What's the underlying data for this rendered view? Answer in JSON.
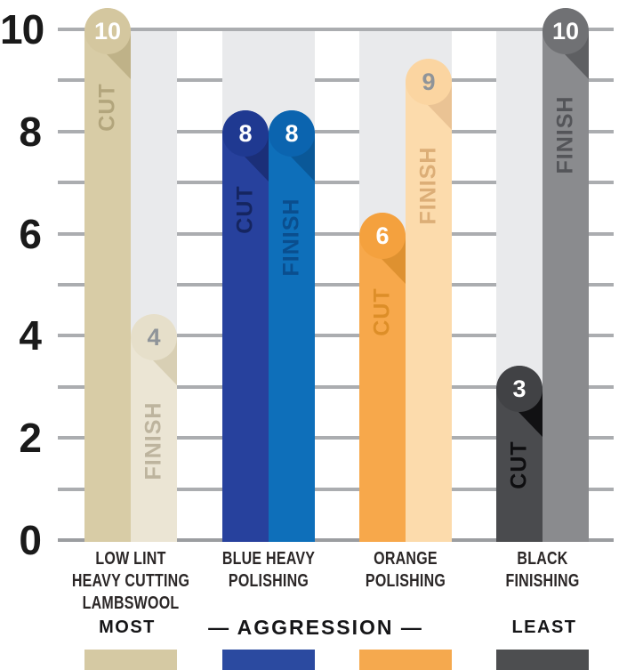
{
  "chart_data": {
    "type": "bar",
    "title": "",
    "categories": [
      "LOW LINT HEAVY CUTTING LAMBSWOOL",
      "BLUE HEAVY POLISHING",
      "ORANGE POLISHING",
      "BLACK FINISHING"
    ],
    "series": [
      {
        "name": "CUT",
        "values": [
          10,
          8,
          6,
          3
        ]
      },
      {
        "name": "FINISH",
        "values": [
          4,
          8,
          9,
          10
        ]
      }
    ],
    "xlabel": "— AGGRESSION —",
    "ylabel": "",
    "ylim": [
      0,
      10
    ],
    "yticks": [
      0,
      2,
      4,
      6,
      8,
      10
    ],
    "gridlines": "horizontal, every 1 unit",
    "legend_position": "labels on bars",
    "aggression_scale": {
      "left": "MOST",
      "center": "— AGGRESSION —",
      "right": "LEAST"
    }
  },
  "axis": {
    "ticks": [
      "10",
      "8",
      "6",
      "4",
      "2",
      "0"
    ]
  },
  "groups": [
    {
      "name": "low-lint-heavy-cutting-lambswool",
      "label_lines": [
        "LOW LINT",
        "HEAVY CUTTING",
        "LAMBSWOOL"
      ],
      "swatch_color": "#d5c9a3",
      "bars": [
        {
          "kind": "CUT",
          "value": 10,
          "display": "10",
          "colors": {
            "bar": "#d8cca6",
            "circle": "#d4c79f",
            "fold": "#bfb288",
            "text": "#b2a57c",
            "num": "#ffffff"
          }
        },
        {
          "kind": "FINISH",
          "value": 4,
          "display": "4",
          "colors": {
            "bar": "#ebe5d4",
            "circle": "#e6dfca",
            "fold": "#d8cfb4",
            "text": "#bdb49e",
            "num": "#8f9499"
          }
        }
      ]
    },
    {
      "name": "blue-heavy-polishing",
      "label_lines": [
        "BLUE HEAVY",
        "POLISHING"
      ],
      "swatch_color": "#2b4aa0",
      "bars": [
        {
          "kind": "CUT",
          "value": 8,
          "display": "8",
          "colors": {
            "bar": "#27419d",
            "circle": "#1f3991",
            "fold": "#1b2f78",
            "text": "#152560",
            "num": "#ffffff"
          }
        },
        {
          "kind": "FINISH",
          "value": 8,
          "display": "8",
          "colors": {
            "bar": "#0e6fba",
            "circle": "#0b64af",
            "fold": "#0a5898",
            "text": "#0a4e8e",
            "num": "#ffffff"
          }
        }
      ]
    },
    {
      "name": "orange-polishing",
      "label_lines": [
        "ORANGE",
        "POLISHING"
      ],
      "swatch_color": "#f5a94e",
      "bars": [
        {
          "kind": "CUT",
          "value": 6,
          "display": "6",
          "colors": {
            "bar": "#f7a84b",
            "circle": "#f4a13e",
            "fold": "#de9130",
            "text": "#dd8e28",
            "num": "#ffffff"
          }
        },
        {
          "kind": "FINISH",
          "value": 9,
          "display": "9",
          "colors": {
            "bar": "#fcdbac",
            "circle": "#fbd5a1",
            "fold": "#eac394",
            "text": "#dcae77",
            "num": "#8f9499"
          }
        }
      ]
    },
    {
      "name": "black-finishing",
      "label_lines": [
        "BLACK",
        "FINISHING"
      ],
      "swatch_color": "#4d4e50",
      "bars": [
        {
          "kind": "CUT",
          "value": 3,
          "display": "3",
          "colors": {
            "bar": "#4a4b4e",
            "circle": "#414245",
            "fold": "#111113",
            "text": "#0e0e10",
            "num": "#ffffff"
          }
        },
        {
          "kind": "FINISH",
          "value": 10,
          "display": "10",
          "colors": {
            "bar": "#8a8b8e",
            "circle": "#707174",
            "fold": "#5e5f62",
            "text": "#545559",
            "num": "#ffffff"
          }
        }
      ]
    }
  ],
  "footer": {
    "most": "MOST",
    "aggression": "— AGGRESSION —",
    "least": "LEAST"
  }
}
